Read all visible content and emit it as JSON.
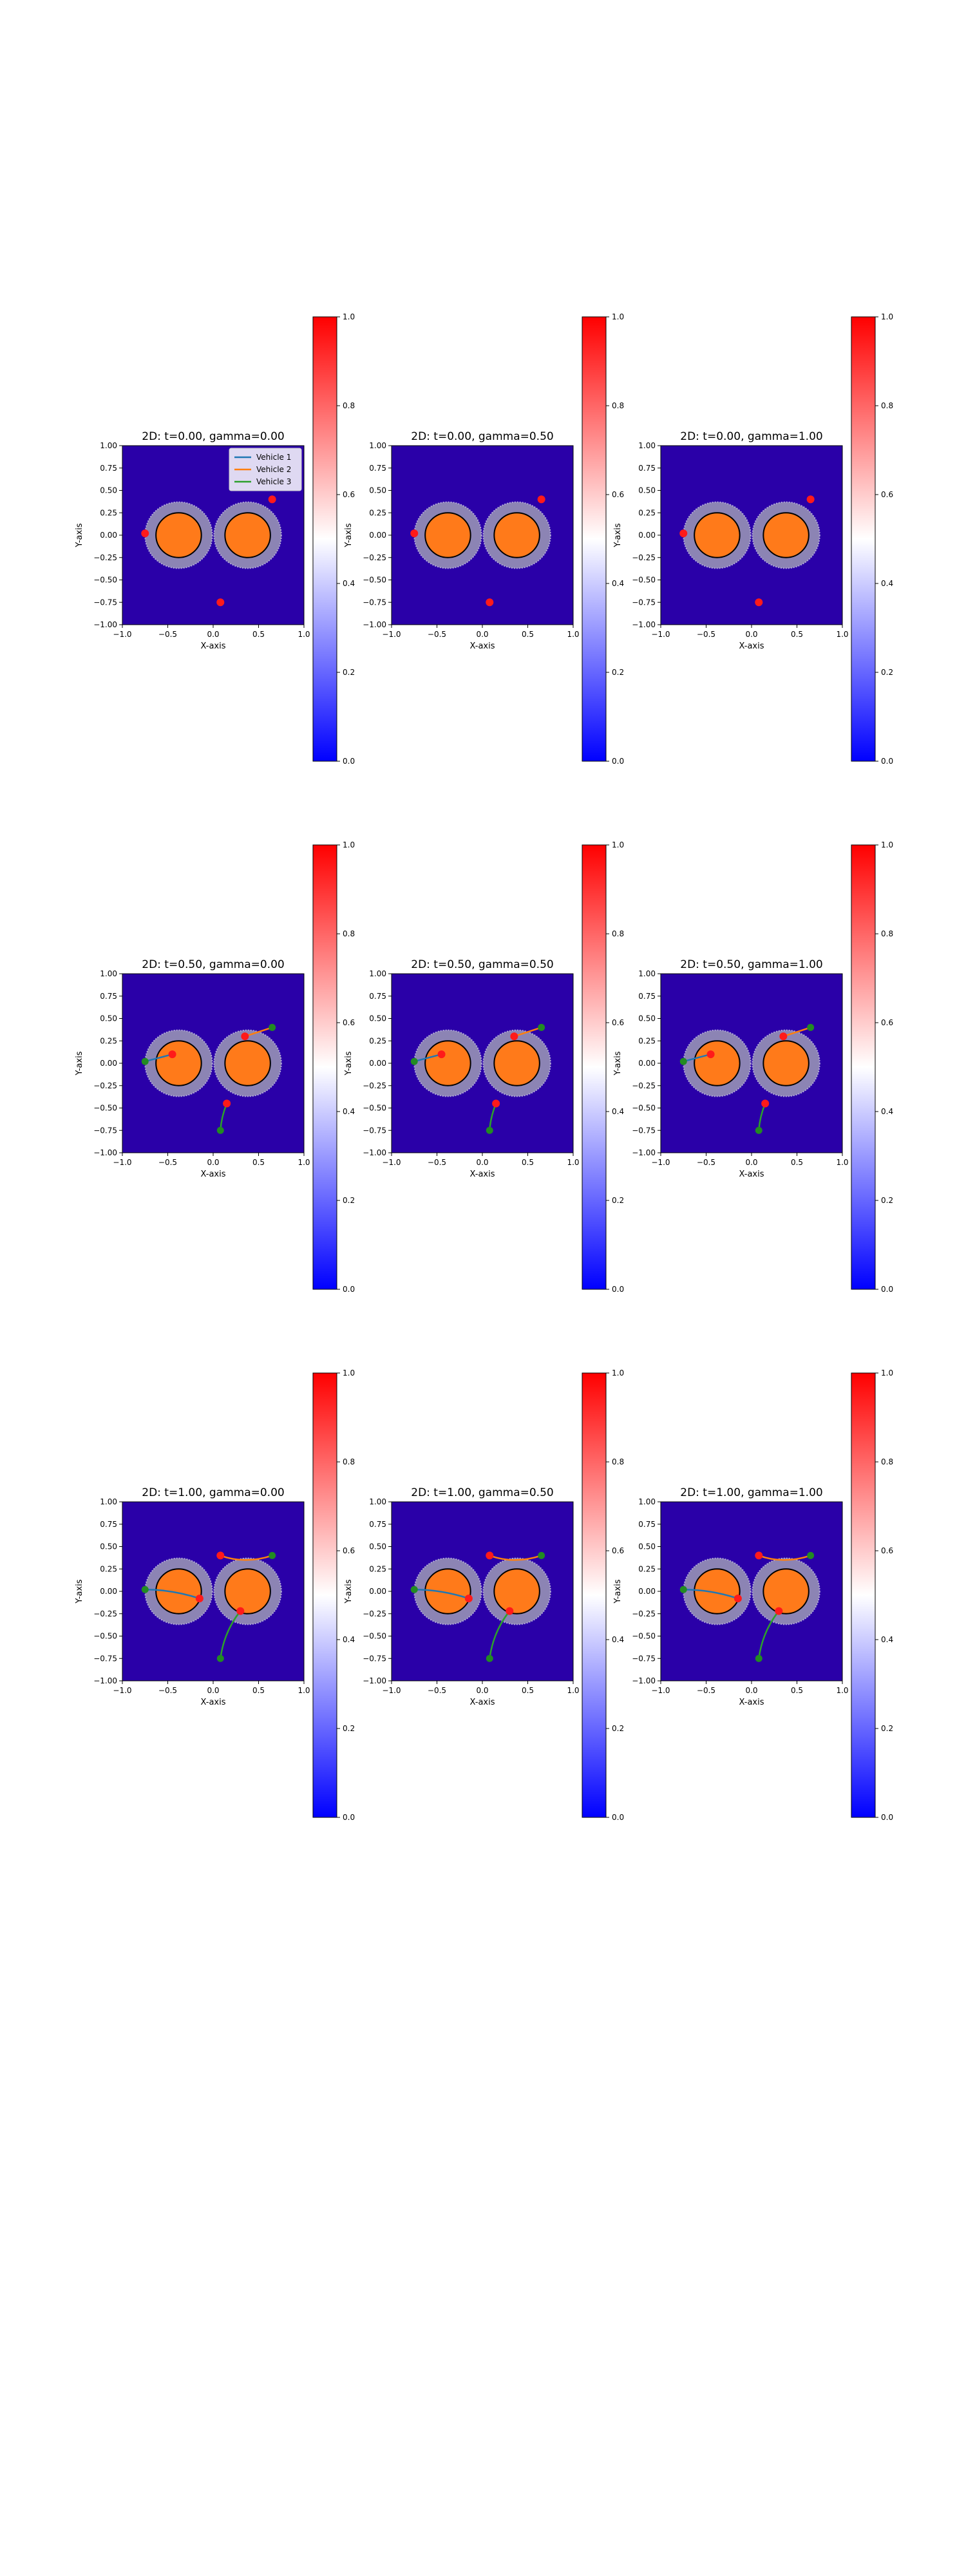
{
  "figure": {
    "rows": 3,
    "cols": 3
  },
  "colors": {
    "background": "#2a00a8",
    "barrier": "#8c84b4",
    "obstacle": "#ff7a1a",
    "obstacle_edge": "#000000",
    "vehicle1": "#1f77b4",
    "vehicle2": "#ff7f0e",
    "vehicle3": "#2ca02c",
    "current_marker": "#ff1a1a",
    "goal_marker": "#228b22"
  },
  "chart_data": {
    "type": "heatmap",
    "xlabel": "X-axis",
    "ylabel": "Y-axis",
    "xlim": [
      -1.0,
      1.0
    ],
    "ylim": [
      -1.0,
      1.0
    ],
    "x_ticks": [
      "−1.0",
      "−0.5",
      "0.0",
      "0.5",
      "1.0"
    ],
    "y_ticks": [
      "1.00",
      "0.75",
      "0.50",
      "0.25",
      "0.00",
      "−0.25",
      "−0.50",
      "−0.75",
      "−1.00"
    ],
    "colorbar": {
      "range": [
        0.0,
        1.0
      ],
      "ticks": [
        "1.0",
        "0.8",
        "0.6",
        "0.4",
        "0.2",
        "0.0"
      ],
      "colormap": "bwr"
    },
    "legend": {
      "placement": "top-right",
      "entries": [
        "Vehicle 1",
        "Vehicle 2",
        "Vehicle 3"
      ]
    },
    "obstacles": [
      {
        "center": [
          -0.38,
          0.0
        ],
        "radius": 0.25
      },
      {
        "center": [
          0.38,
          0.0
        ],
        "radius": 0.25
      }
    ],
    "goals": [
      [
        -0.75,
        0.02
      ],
      [
        0.65,
        0.4
      ],
      [
        0.08,
        -0.75
      ]
    ],
    "panels": [
      {
        "title": "2D: t=0.00, gamma=0.00",
        "t": 0.0,
        "gamma": 0.0,
        "show_legend": true,
        "current": [
          [
            -0.75,
            0.02
          ],
          [
            0.65,
            0.4
          ],
          [
            0.08,
            -0.75
          ]
        ],
        "trajectories": []
      },
      {
        "title": "2D: t=0.00, gamma=0.50",
        "t": 0.0,
        "gamma": 0.5,
        "show_legend": false,
        "current": [
          [
            -0.75,
            0.02
          ],
          [
            0.65,
            0.4
          ],
          [
            0.08,
            -0.75
          ]
        ],
        "trajectories": []
      },
      {
        "title": "2D: t=0.00, gamma=1.00",
        "t": 0.0,
        "gamma": 1.0,
        "show_legend": false,
        "current": [
          [
            -0.75,
            0.02
          ],
          [
            0.65,
            0.4
          ],
          [
            0.08,
            -0.75
          ]
        ],
        "trajectories": []
      },
      {
        "title": "2D: t=0.50, gamma=0.00",
        "t": 0.5,
        "gamma": 0.0,
        "show_legend": false,
        "current": [
          [
            -0.45,
            0.1
          ],
          [
            0.35,
            0.3
          ],
          [
            0.15,
            -0.45
          ]
        ],
        "trajectories": [
          [
            [
              -0.75,
              0.02
            ],
            [
              -0.6,
              0.06
            ],
            [
              -0.45,
              0.1
            ]
          ],
          [
            [
              0.65,
              0.4
            ],
            [
              0.5,
              0.35
            ],
            [
              0.35,
              0.3
            ]
          ],
          [
            [
              0.08,
              -0.75
            ],
            [
              0.09,
              -0.6
            ],
            [
              0.15,
              -0.45
            ]
          ]
        ]
      },
      {
        "title": "2D: t=0.50, gamma=0.50",
        "t": 0.5,
        "gamma": 0.5,
        "show_legend": false,
        "current": [
          [
            -0.45,
            0.1
          ],
          [
            0.35,
            0.3
          ],
          [
            0.15,
            -0.45
          ]
        ],
        "trajectories": [
          [
            [
              -0.75,
              0.02
            ],
            [
              -0.6,
              0.06
            ],
            [
              -0.45,
              0.1
            ]
          ],
          [
            [
              0.65,
              0.4
            ],
            [
              0.5,
              0.35
            ],
            [
              0.35,
              0.3
            ]
          ],
          [
            [
              0.08,
              -0.75
            ],
            [
              0.09,
              -0.6
            ],
            [
              0.15,
              -0.45
            ]
          ]
        ]
      },
      {
        "title": "2D: t=0.50, gamma=1.00",
        "t": 0.5,
        "gamma": 1.0,
        "show_legend": false,
        "current": [
          [
            -0.45,
            0.1
          ],
          [
            0.35,
            0.3
          ],
          [
            0.15,
            -0.45
          ]
        ],
        "trajectories": [
          [
            [
              -0.75,
              0.02
            ],
            [
              -0.6,
              0.06
            ],
            [
              -0.45,
              0.1
            ]
          ],
          [
            [
              0.65,
              0.4
            ],
            [
              0.5,
              0.35
            ],
            [
              0.35,
              0.3
            ]
          ],
          [
            [
              0.08,
              -0.75
            ],
            [
              0.09,
              -0.6
            ],
            [
              0.15,
              -0.45
            ]
          ]
        ]
      },
      {
        "title": "2D: t=1.00, gamma=0.00",
        "t": 1.0,
        "gamma": 0.0,
        "show_legend": false,
        "current": [
          [
            -0.15,
            -0.08
          ],
          [
            0.08,
            0.4
          ],
          [
            0.3,
            -0.22
          ]
        ],
        "trajectories": [
          [
            [
              -0.75,
              0.02
            ],
            [
              -0.45,
              0.02
            ],
            [
              -0.15,
              -0.08
            ]
          ],
          [
            [
              0.65,
              0.4
            ],
            [
              0.35,
              0.3
            ],
            [
              0.08,
              0.4
            ]
          ],
          [
            [
              0.08,
              -0.75
            ],
            [
              0.12,
              -0.45
            ],
            [
              0.3,
              -0.22
            ]
          ]
        ]
      },
      {
        "title": "2D: t=1.00, gamma=0.50",
        "t": 1.0,
        "gamma": 0.5,
        "show_legend": false,
        "current": [
          [
            -0.15,
            -0.08
          ],
          [
            0.08,
            0.4
          ],
          [
            0.3,
            -0.22
          ]
        ],
        "trajectories": [
          [
            [
              -0.75,
              0.02
            ],
            [
              -0.45,
              0.02
            ],
            [
              -0.15,
              -0.08
            ]
          ],
          [
            [
              0.65,
              0.4
            ],
            [
              0.35,
              0.3
            ],
            [
              0.08,
              0.4
            ]
          ],
          [
            [
              0.08,
              -0.75
            ],
            [
              0.12,
              -0.45
            ],
            [
              0.3,
              -0.22
            ]
          ]
        ]
      },
      {
        "title": "2D: t=1.00, gamma=1.00",
        "t": 1.0,
        "gamma": 1.0,
        "show_legend": false,
        "current": [
          [
            -0.15,
            -0.08
          ],
          [
            0.08,
            0.4
          ],
          [
            0.3,
            -0.22
          ]
        ],
        "trajectories": [
          [
            [
              -0.75,
              0.02
            ],
            [
              -0.45,
              0.02
            ],
            [
              -0.15,
              -0.08
            ]
          ],
          [
            [
              0.65,
              0.4
            ],
            [
              0.35,
              0.3
            ],
            [
              0.08,
              0.4
            ]
          ],
          [
            [
              0.08,
              -0.75
            ],
            [
              0.12,
              -0.45
            ],
            [
              0.3,
              -0.22
            ]
          ]
        ]
      }
    ]
  }
}
